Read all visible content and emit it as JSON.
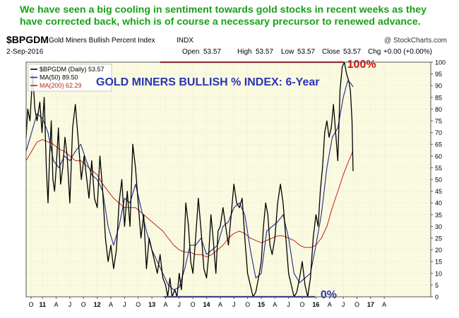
{
  "caption": "We have seen a big cooling in sentiment towards gold stocks in recent weeks as they have corrected back, which is of course a necessary precursor to renewed advance.",
  "header": {
    "symbol": "$BPGDM",
    "name": "Gold Miners Bullish Percent Index",
    "exchange": "INDX",
    "date": "2-Sep-2016",
    "watermark": "@ StockCharts.com",
    "ohlc": {
      "open_label": "Open",
      "open": "53.57",
      "high_label": "High",
      "high": "53.57",
      "low_label": "Low",
      "low": "53.57",
      "close_label": "Close",
      "close": "53.57",
      "chg_label": "Chg",
      "chg": "+0.00 (+0.00%)"
    }
  },
  "colors": {
    "price": "#000000",
    "ma50": "#1c2a8c",
    "ma200": "#c42020",
    "plot_bg": "#fafae0",
    "annotation_blue": "#2a34b5",
    "annotation_red": "#cc1010",
    "caption_green": "#1aa01a"
  },
  "chart_data": {
    "type": "line",
    "title": "GOLD MINERS BULLISH % INDEX: 6-Year",
    "ylim": [
      0,
      100
    ],
    "y_ticks": [
      0,
      5,
      10,
      15,
      20,
      25,
      30,
      35,
      40,
      45,
      50,
      55,
      60,
      65,
      70,
      75,
      80,
      85,
      90,
      95,
      100
    ],
    "x_range": [
      2010.7,
      2018.1
    ],
    "x_ticks": [
      {
        "t": 2010.79,
        "label": "O",
        "year": false
      },
      {
        "t": 2011.0,
        "label": "11",
        "year": true
      },
      {
        "t": 2011.25,
        "label": "A",
        "year": false
      },
      {
        "t": 2011.5,
        "label": "J",
        "year": false
      },
      {
        "t": 2011.75,
        "label": "O",
        "year": false
      },
      {
        "t": 2012.0,
        "label": "12",
        "year": true
      },
      {
        "t": 2012.25,
        "label": "A",
        "year": false
      },
      {
        "t": 2012.5,
        "label": "J",
        "year": false
      },
      {
        "t": 2012.75,
        "label": "O",
        "year": false
      },
      {
        "t": 2013.0,
        "label": "13",
        "year": true
      },
      {
        "t": 2013.25,
        "label": "A",
        "year": false
      },
      {
        "t": 2013.5,
        "label": "J",
        "year": false
      },
      {
        "t": 2013.75,
        "label": "O",
        "year": false
      },
      {
        "t": 2014.0,
        "label": "14",
        "year": true
      },
      {
        "t": 2014.25,
        "label": "A",
        "year": false
      },
      {
        "t": 2014.5,
        "label": "J",
        "year": false
      },
      {
        "t": 2014.75,
        "label": "O",
        "year": false
      },
      {
        "t": 2015.0,
        "label": "15",
        "year": true
      },
      {
        "t": 2015.25,
        "label": "A",
        "year": false
      },
      {
        "t": 2015.5,
        "label": "J",
        "year": false
      },
      {
        "t": 2015.75,
        "label": "O",
        "year": false
      },
      {
        "t": 2016.0,
        "label": "16",
        "year": true
      },
      {
        "t": 2016.25,
        "label": "A",
        "year": false
      },
      {
        "t": 2016.5,
        "label": "J",
        "year": false
      },
      {
        "t": 2016.75,
        "label": "O",
        "year": false
      },
      {
        "t": 2017.0,
        "label": "17",
        "year": true
      },
      {
        "t": 2017.25,
        "label": "A",
        "year": false
      }
    ],
    "series": [
      {
        "name": "$BPGDM",
        "legend": "$BPGDM (Daily) 53.57",
        "key": "price",
        "points": [
          [
            2010.7,
            68
          ],
          [
            2010.73,
            80
          ],
          [
            2010.77,
            75
          ],
          [
            2010.82,
            95
          ],
          [
            2010.86,
            80
          ],
          [
            2010.9,
            75
          ],
          [
            2010.95,
            83
          ],
          [
            2010.99,
            70
          ],
          [
            2011.03,
            85
          ],
          [
            2011.07,
            55
          ],
          [
            2011.1,
            40
          ],
          [
            2011.13,
            60
          ],
          [
            2011.16,
            75
          ],
          [
            2011.19,
            50
          ],
          [
            2011.22,
            45
          ],
          [
            2011.25,
            55
          ],
          [
            2011.29,
            72
          ],
          [
            2011.33,
            48
          ],
          [
            2011.37,
            55
          ],
          [
            2011.41,
            68
          ],
          [
            2011.45,
            60
          ],
          [
            2011.5,
            40
          ],
          [
            2011.55,
            72
          ],
          [
            2011.6,
            82
          ],
          [
            2011.66,
            65
          ],
          [
            2011.71,
            50
          ],
          [
            2011.76,
            60
          ],
          [
            2011.81,
            50
          ],
          [
            2011.85,
            42
          ],
          [
            2011.9,
            58
          ],
          [
            2011.95,
            42
          ],
          [
            2012.0,
            38
          ],
          [
            2012.05,
            60
          ],
          [
            2012.1,
            45
          ],
          [
            2012.15,
            25
          ],
          [
            2012.2,
            15
          ],
          [
            2012.25,
            22
          ],
          [
            2012.3,
            12
          ],
          [
            2012.35,
            20
          ],
          [
            2012.4,
            40
          ],
          [
            2012.45,
            50
          ],
          [
            2012.5,
            30
          ],
          [
            2012.55,
            45
          ],
          [
            2012.6,
            30
          ],
          [
            2012.65,
            65
          ],
          [
            2012.7,
            55
          ],
          [
            2012.75,
            40
          ],
          [
            2012.8,
            25
          ],
          [
            2012.85,
            35
          ],
          [
            2012.9,
            12
          ],
          [
            2012.95,
            25
          ],
          [
            2013.0,
            20
          ],
          [
            2013.05,
            15
          ],
          [
            2013.1,
            10
          ],
          [
            2013.15,
            18
          ],
          [
            2013.2,
            8
          ],
          [
            2013.25,
            5
          ],
          [
            2013.29,
            0
          ],
          [
            2013.33,
            8
          ],
          [
            2013.37,
            0
          ],
          [
            2013.42,
            3
          ],
          [
            2013.46,
            0
          ],
          [
            2013.5,
            10
          ],
          [
            2013.54,
            3
          ],
          [
            2013.58,
            15
          ],
          [
            2013.62,
            40
          ],
          [
            2013.67,
            30
          ],
          [
            2013.71,
            15
          ],
          [
            2013.75,
            10
          ],
          [
            2013.8,
            25
          ],
          [
            2013.85,
            42
          ],
          [
            2013.9,
            28
          ],
          [
            2013.95,
            12
          ],
          [
            2014.0,
            8
          ],
          [
            2014.04,
            18
          ],
          [
            2014.08,
            35
          ],
          [
            2014.12,
            25
          ],
          [
            2014.17,
            10
          ],
          [
            2014.21,
            28
          ],
          [
            2014.25,
            30
          ],
          [
            2014.3,
            38
          ],
          [
            2014.35,
            30
          ],
          [
            2014.4,
            22
          ],
          [
            2014.45,
            35
          ],
          [
            2014.5,
            48
          ],
          [
            2014.55,
            40
          ],
          [
            2014.6,
            38
          ],
          [
            2014.65,
            42
          ],
          [
            2014.7,
            25
          ],
          [
            2014.75,
            10
          ],
          [
            2014.8,
            5
          ],
          [
            2014.85,
            0
          ],
          [
            2014.9,
            2
          ],
          [
            2014.95,
            8
          ],
          [
            2015.0,
            15
          ],
          [
            2015.04,
            30
          ],
          [
            2015.08,
            40
          ],
          [
            2015.12,
            35
          ],
          [
            2015.16,
            22
          ],
          [
            2015.2,
            18
          ],
          [
            2015.25,
            25
          ],
          [
            2015.3,
            40
          ],
          [
            2015.35,
            48
          ],
          [
            2015.4,
            40
          ],
          [
            2015.45,
            25
          ],
          [
            2015.5,
            10
          ],
          [
            2015.55,
            5
          ],
          [
            2015.6,
            0
          ],
          [
            2015.65,
            2
          ],
          [
            2015.7,
            8
          ],
          [
            2015.75,
            15
          ],
          [
            2015.8,
            5
          ],
          [
            2015.85,
            0
          ],
          [
            2015.9,
            8
          ],
          [
            2015.95,
            25
          ],
          [
            2016.0,
            35
          ],
          [
            2016.04,
            30
          ],
          [
            2016.08,
            45
          ],
          [
            2016.12,
            55
          ],
          [
            2016.16,
            70
          ],
          [
            2016.2,
            75
          ],
          [
            2016.24,
            68
          ],
          [
            2016.28,
            72
          ],
          [
            2016.32,
            82
          ],
          [
            2016.36,
            70
          ],
          [
            2016.4,
            58
          ],
          [
            2016.44,
            88
          ],
          [
            2016.48,
            98
          ],
          [
            2016.52,
            100
          ],
          [
            2016.56,
            95
          ],
          [
            2016.6,
            92
          ],
          [
            2016.63,
            88
          ],
          [
            2016.66,
            75
          ],
          [
            2016.68,
            53.57
          ]
        ]
      },
      {
        "name": "MA(50)",
        "legend": "MA(50) 89.50",
        "key": "ma50",
        "points": [
          [
            2010.7,
            62
          ],
          [
            2010.8,
            70
          ],
          [
            2010.9,
            78
          ],
          [
            2011.0,
            76
          ],
          [
            2011.1,
            70
          ],
          [
            2011.2,
            58
          ],
          [
            2011.3,
            55
          ],
          [
            2011.4,
            60
          ],
          [
            2011.5,
            58
          ],
          [
            2011.6,
            62
          ],
          [
            2011.7,
            65
          ],
          [
            2011.8,
            58
          ],
          [
            2011.9,
            52
          ],
          [
            2012.0,
            50
          ],
          [
            2012.1,
            45
          ],
          [
            2012.2,
            30
          ],
          [
            2012.3,
            22
          ],
          [
            2012.4,
            30
          ],
          [
            2012.5,
            42
          ],
          [
            2012.6,
            40
          ],
          [
            2012.7,
            48
          ],
          [
            2012.8,
            38
          ],
          [
            2012.9,
            28
          ],
          [
            2013.0,
            20
          ],
          [
            2013.1,
            15
          ],
          [
            2013.2,
            10
          ],
          [
            2013.3,
            5
          ],
          [
            2013.4,
            3
          ],
          [
            2013.5,
            4
          ],
          [
            2013.6,
            12
          ],
          [
            2013.7,
            22
          ],
          [
            2013.8,
            22
          ],
          [
            2013.9,
            25
          ],
          [
            2014.0,
            18
          ],
          [
            2014.1,
            20
          ],
          [
            2014.2,
            22
          ],
          [
            2014.3,
            30
          ],
          [
            2014.4,
            32
          ],
          [
            2014.5,
            38
          ],
          [
            2014.6,
            40
          ],
          [
            2014.7,
            35
          ],
          [
            2014.8,
            20
          ],
          [
            2014.9,
            8
          ],
          [
            2015.0,
            10
          ],
          [
            2015.1,
            28
          ],
          [
            2015.2,
            30
          ],
          [
            2015.3,
            32
          ],
          [
            2015.4,
            35
          ],
          [
            2015.5,
            25
          ],
          [
            2015.6,
            10
          ],
          [
            2015.7,
            6
          ],
          [
            2015.8,
            8
          ],
          [
            2015.9,
            10
          ],
          [
            2016.0,
            22
          ],
          [
            2016.1,
            35
          ],
          [
            2016.2,
            55
          ],
          [
            2016.3,
            68
          ],
          [
            2016.4,
            72
          ],
          [
            2016.5,
            85
          ],
          [
            2016.58,
            92
          ],
          [
            2016.64,
            91
          ],
          [
            2016.68,
            89.5
          ]
        ]
      },
      {
        "name": "MA(200)",
        "legend": "MA(200) 62.29",
        "key": "ma200",
        "points": [
          [
            2010.7,
            58
          ],
          [
            2010.8,
            62
          ],
          [
            2010.9,
            66
          ],
          [
            2011.0,
            67
          ],
          [
            2011.1,
            66
          ],
          [
            2011.2,
            65
          ],
          [
            2011.3,
            63
          ],
          [
            2011.4,
            62
          ],
          [
            2011.5,
            60
          ],
          [
            2011.6,
            58
          ],
          [
            2011.7,
            58
          ],
          [
            2011.8,
            56
          ],
          [
            2011.9,
            54
          ],
          [
            2012.0,
            52
          ],
          [
            2012.1,
            48
          ],
          [
            2012.2,
            45
          ],
          [
            2012.3,
            42
          ],
          [
            2012.4,
            40
          ],
          [
            2012.5,
            38
          ],
          [
            2012.6,
            38
          ],
          [
            2012.7,
            38
          ],
          [
            2012.8,
            36
          ],
          [
            2012.9,
            34
          ],
          [
            2013.0,
            32
          ],
          [
            2013.1,
            30
          ],
          [
            2013.2,
            28
          ],
          [
            2013.3,
            25
          ],
          [
            2013.4,
            22
          ],
          [
            2013.5,
            20
          ],
          [
            2013.6,
            19
          ],
          [
            2013.7,
            19
          ],
          [
            2013.8,
            18
          ],
          [
            2013.9,
            18
          ],
          [
            2014.0,
            17
          ],
          [
            2014.1,
            18
          ],
          [
            2014.2,
            20
          ],
          [
            2014.3,
            22
          ],
          [
            2014.4,
            25
          ],
          [
            2014.5,
            27
          ],
          [
            2014.6,
            28
          ],
          [
            2014.7,
            27
          ],
          [
            2014.8,
            25
          ],
          [
            2014.9,
            24
          ],
          [
            2015.0,
            23
          ],
          [
            2015.1,
            24
          ],
          [
            2015.2,
            25
          ],
          [
            2015.3,
            26
          ],
          [
            2015.4,
            26
          ],
          [
            2015.5,
            25
          ],
          [
            2015.6,
            24
          ],
          [
            2015.7,
            22
          ],
          [
            2015.8,
            21
          ],
          [
            2015.9,
            21
          ],
          [
            2016.0,
            22
          ],
          [
            2016.1,
            25
          ],
          [
            2016.2,
            30
          ],
          [
            2016.3,
            38
          ],
          [
            2016.4,
            45
          ],
          [
            2016.5,
            52
          ],
          [
            2016.6,
            58
          ],
          [
            2016.68,
            62.29
          ]
        ]
      }
    ],
    "annotations": [
      {
        "label": "100%",
        "value": 100,
        "from": 2013.15,
        "to": 2016.52
      },
      {
        "label": "0%",
        "value": 0,
        "from": 2013.22,
        "to": 2015.98
      }
    ]
  }
}
